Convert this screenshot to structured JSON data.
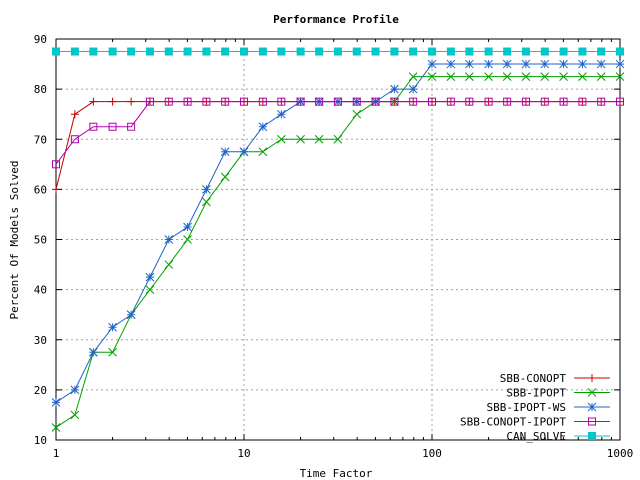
{
  "chart_data": {
    "type": "line",
    "title": "Performance Profile",
    "xlabel": "Time Factor",
    "ylabel": "Percent Of Models Solved",
    "xscale": "log",
    "xlim": [
      1,
      1000
    ],
    "ylim": [
      10,
      90
    ],
    "xticks": [
      1,
      10,
      100,
      1000
    ],
    "yticks": [
      10,
      20,
      30,
      40,
      50,
      60,
      70,
      80,
      90
    ],
    "grid": true,
    "legend_position": "bottom-right",
    "series": [
      {
        "name": "SBB-CONOPT",
        "color": "#c00000",
        "marker": "plus",
        "x": [
          1,
          1.26,
          1.58,
          2.0,
          2.51,
          3.16,
          3.98,
          5.01,
          6.31,
          7.94,
          10,
          12.6,
          15.8,
          20.0,
          25.1,
          31.6,
          39.8,
          50.1,
          63.1,
          79.4,
          100,
          126,
          158,
          200,
          251,
          316,
          398,
          501,
          631,
          794,
          1000
        ],
        "y": [
          60,
          75,
          77.5,
          77.5,
          77.5,
          77.5,
          77.5,
          77.5,
          77.5,
          77.5,
          77.5,
          77.5,
          77.5,
          77.5,
          77.5,
          77.5,
          77.5,
          77.5,
          77.5,
          77.5,
          77.5,
          77.5,
          77.5,
          77.5,
          77.5,
          77.5,
          77.5,
          77.5,
          77.5,
          77.5,
          77.5
        ]
      },
      {
        "name": "SBB-IPOPT",
        "color": "#00a000",
        "marker": "x",
        "x": [
          1,
          1.26,
          1.58,
          2.0,
          2.51,
          3.16,
          3.98,
          5.01,
          6.31,
          7.94,
          10,
          12.6,
          15.8,
          20.0,
          25.1,
          31.6,
          39.8,
          50.1,
          63.1,
          79.4,
          100,
          126,
          158,
          200,
          251,
          316,
          398,
          501,
          631,
          794,
          1000
        ],
        "y": [
          12.5,
          15,
          27.5,
          27.5,
          35,
          40,
          45,
          50,
          57.5,
          62.5,
          67.5,
          67.5,
          70,
          70,
          70,
          70,
          75,
          77.5,
          77.5,
          82.5,
          82.5,
          82.5,
          82.5,
          82.5,
          82.5,
          82.5,
          82.5,
          82.5,
          82.5,
          82.5,
          82.5
        ]
      },
      {
        "name": "SBB-IPOPT-WS",
        "color": "#1e64c8",
        "marker": "star",
        "x": [
          1,
          1.26,
          1.58,
          2.0,
          2.51,
          3.16,
          3.98,
          5.01,
          6.31,
          7.94,
          10,
          12.6,
          15.8,
          20.0,
          25.1,
          31.6,
          39.8,
          50.1,
          63.1,
          79.4,
          100,
          126,
          158,
          200,
          251,
          316,
          398,
          501,
          631,
          794,
          1000
        ],
        "y": [
          17.5,
          20,
          27.5,
          32.5,
          35,
          42.5,
          50,
          52.5,
          60,
          67.5,
          67.5,
          72.5,
          75,
          77.5,
          77.5,
          77.5,
          77.5,
          77.5,
          80,
          80,
          85,
          85,
          85,
          85,
          85,
          85,
          85,
          85,
          85,
          85,
          85
        ]
      },
      {
        "name": "SBB-CONOPT-IPOPT",
        "color": "#b000b0",
        "marker": "square-open",
        "x": [
          1,
          1.26,
          1.58,
          2.0,
          2.51,
          3.16,
          3.98,
          5.01,
          6.31,
          7.94,
          10,
          12.6,
          15.8,
          20.0,
          25.1,
          31.6,
          39.8,
          50.1,
          63.1,
          79.4,
          100,
          126,
          158,
          200,
          251,
          316,
          398,
          501,
          631,
          794,
          1000
        ],
        "y": [
          65,
          70,
          72.5,
          72.5,
          72.5,
          77.5,
          77.5,
          77.5,
          77.5,
          77.5,
          77.5,
          77.5,
          77.5,
          77.5,
          77.5,
          77.5,
          77.5,
          77.5,
          77.5,
          77.5,
          77.5,
          77.5,
          77.5,
          77.5,
          77.5,
          77.5,
          77.5,
          77.5,
          77.5,
          77.5,
          77.5
        ]
      },
      {
        "name": "CAN_SOLVE",
        "color": "#00c8c8",
        "marker": "square-filled",
        "x": [
          1,
          1.26,
          1.58,
          2.0,
          2.51,
          3.16,
          3.98,
          5.01,
          6.31,
          7.94,
          10,
          12.6,
          15.8,
          20.0,
          25.1,
          31.6,
          39.8,
          50.1,
          63.1,
          79.4,
          100,
          126,
          158,
          200,
          251,
          316,
          398,
          501,
          631,
          794,
          1000
        ],
        "y": [
          87.5,
          87.5,
          87.5,
          87.5,
          87.5,
          87.5,
          87.5,
          87.5,
          87.5,
          87.5,
          87.5,
          87.5,
          87.5,
          87.5,
          87.5,
          87.5,
          87.5,
          87.5,
          87.5,
          87.5,
          87.5,
          87.5,
          87.5,
          87.5,
          87.5,
          87.5,
          87.5,
          87.5,
          87.5,
          87.5,
          87.5
        ]
      }
    ]
  }
}
